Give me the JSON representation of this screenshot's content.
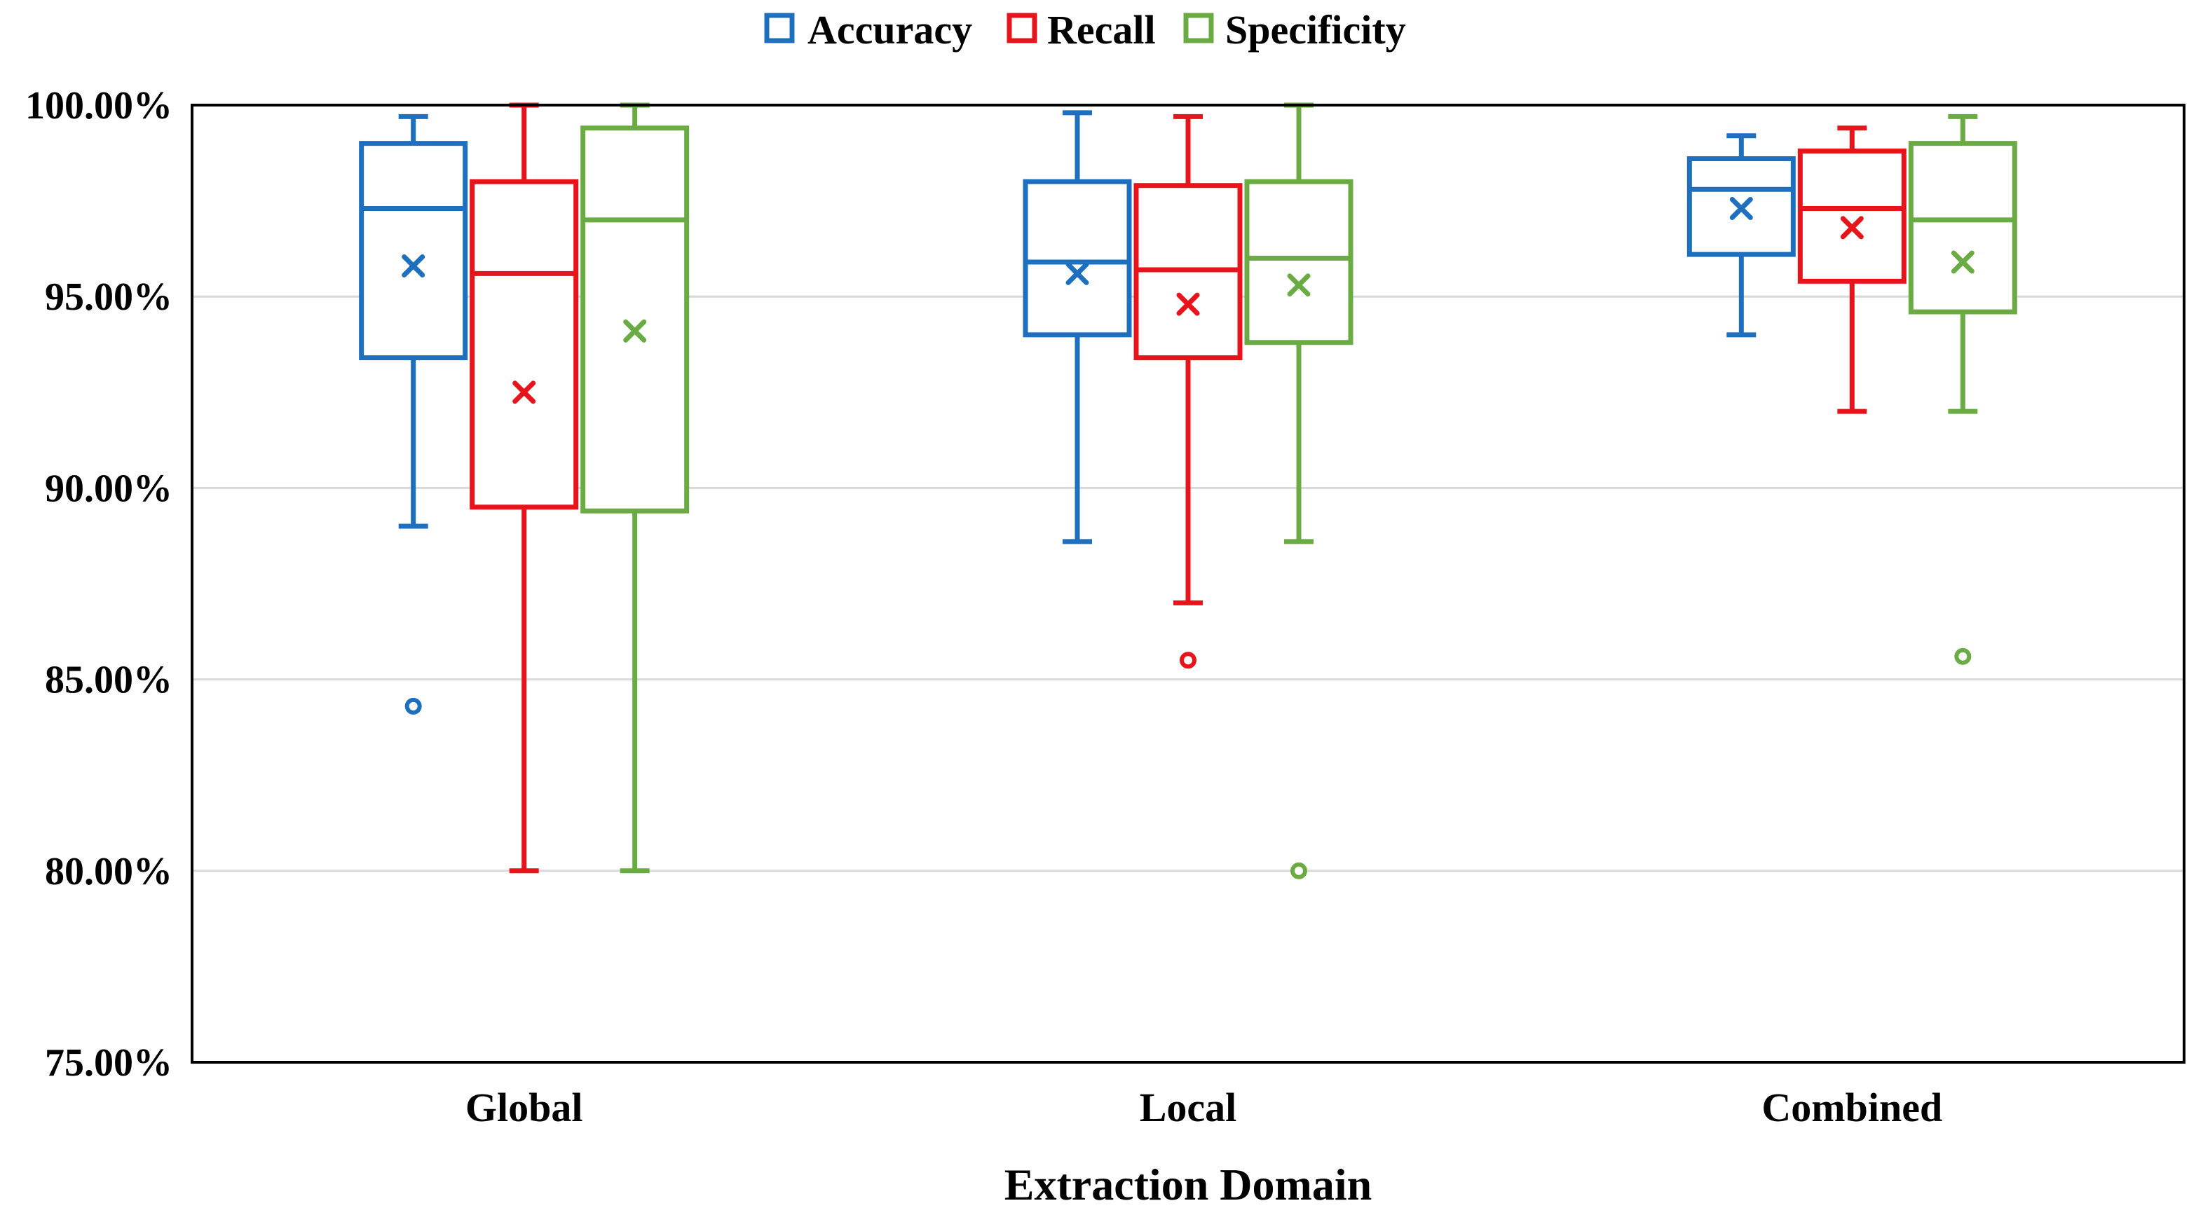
{
  "chart_data": {
    "type": "box",
    "title": "",
    "xlabel": "Extraction Domain",
    "ylabel": "",
    "ylim": [
      75,
      100
    ],
    "yticks": [
      75,
      80,
      85,
      90,
      95,
      100
    ],
    "ytick_labels": [
      "75.00%",
      "80.00%",
      "85.00%",
      "90.00%",
      "95.00%",
      "100.00%"
    ],
    "grid": true,
    "legend_position": "top-center",
    "categories": [
      "Global",
      "Local",
      "Combined"
    ],
    "series": [
      {
        "name": "Accuracy",
        "color": "#1F6FBF",
        "boxes": [
          {
            "min": 89.0,
            "q1": 93.4,
            "median": 97.3,
            "q3": 99.0,
            "max": 99.7,
            "mean": 95.8,
            "outliers": [
              84.3
            ]
          },
          {
            "min": 88.6,
            "q1": 94.0,
            "median": 95.9,
            "q3": 98.0,
            "max": 99.8,
            "mean": 95.6,
            "outliers": []
          },
          {
            "min": 94.0,
            "q1": 96.1,
            "median": 97.8,
            "q3": 98.6,
            "max": 99.2,
            "mean": 97.3,
            "outliers": []
          }
        ]
      },
      {
        "name": "Recall",
        "color": "#E8141B",
        "boxes": [
          {
            "min": 80.0,
            "q1": 89.5,
            "median": 95.6,
            "q3": 98.0,
            "max": 100.0,
            "mean": 92.5,
            "outliers": []
          },
          {
            "min": 87.0,
            "q1": 93.4,
            "median": 95.7,
            "q3": 97.9,
            "max": 99.7,
            "mean": 94.8,
            "outliers": [
              85.5
            ]
          },
          {
            "min": 92.0,
            "q1": 95.4,
            "median": 97.3,
            "q3": 98.8,
            "max": 99.4,
            "mean": 96.8,
            "outliers": []
          }
        ]
      },
      {
        "name": "Specificity",
        "color": "#6AAB44",
        "boxes": [
          {
            "min": 80.0,
            "q1": 89.4,
            "median": 97.0,
            "q3": 99.4,
            "max": 100.0,
            "mean": 94.1,
            "outliers": []
          },
          {
            "min": 88.6,
            "q1": 93.8,
            "median": 96.0,
            "q3": 98.0,
            "max": 100.0,
            "mean": 95.3,
            "outliers": [
              80.0
            ]
          },
          {
            "min": 92.0,
            "q1": 94.6,
            "median": 97.0,
            "q3": 99.0,
            "max": 99.7,
            "mean": 95.9,
            "outliers": [
              85.6
            ]
          }
        ]
      }
    ]
  }
}
